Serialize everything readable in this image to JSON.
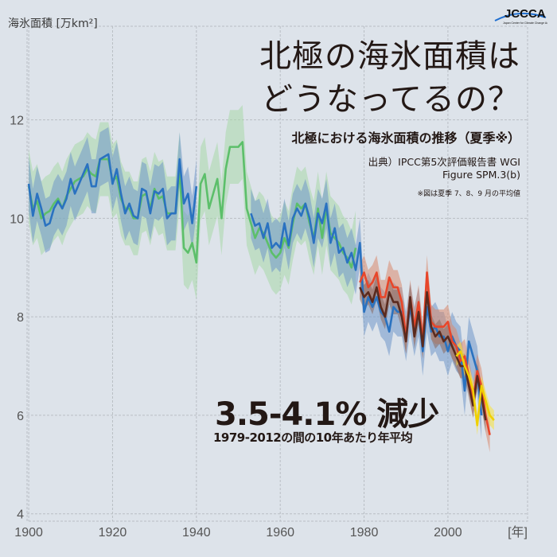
{
  "header": {
    "title_line1": "北極の海氷面積は",
    "title_line2": "どうなってるの？",
    "subtitle": "北極における海氷面積の推移（夏季※）",
    "source_line1": "出典）IPCC第5次評価報告書 WGI",
    "source_line2": "Figure SPM.3(b)",
    "note": "※図は夏季 7、8、9 月の平均値"
  },
  "logo": {
    "text": "JCCCA",
    "tagline": "Japan Center for Climate Change Actions"
  },
  "annotation": {
    "headline": "3.5-4.1% 減少",
    "detail": "1979-2012の間の10年あたり年平均"
  },
  "chart_data": {
    "type": "line",
    "ylabel": "海氷面積 [万km²]",
    "xlabel": "[年]",
    "xlim": [
      1899.6,
      2019
    ],
    "ylim": [
      3.85,
      13.9
    ],
    "xticks": [
      1900,
      1920,
      1940,
      1960,
      1980,
      2000
    ],
    "yticks": [
      4,
      6,
      8,
      10,
      12
    ],
    "grid": true,
    "series": [
      {
        "color": "#5cbf6a",
        "band_color": "#a8d9a8",
        "uncertainty": 0.75,
        "start": 1900,
        "values": [
          10.65,
          10.2,
          10.35,
          10.0,
          10.1,
          10.15,
          10.3,
          10.4,
          10.2,
          10.45,
          10.6,
          10.75,
          10.8,
          10.85,
          11.0,
          10.9,
          10.85,
          11.2,
          11.2,
          11.2,
          10.75,
          10.85,
          10.4,
          10.2,
          10.2,
          10.0,
          10.0,
          10.45,
          10.5,
          10.2,
          10.6,
          10.4,
          10.45,
          10.1,
          10.1,
          10.1,
          11.0,
          9.4,
          9.3,
          9.5,
          9.1,
          10.7,
          10.9,
          10.2,
          10.5,
          10.8,
          10.0,
          11.0,
          11.45,
          11.45,
          11.45,
          11.55,
          10.2,
          9.9,
          9.6,
          9.8,
          9.7,
          9.5,
          9.3,
          9.2,
          9.3,
          9.6,
          9.4,
          9.9,
          10.3,
          10.2,
          10.3,
          9.9,
          9.6,
          10.2,
          9.6,
          10.2,
          9.7,
          9.6,
          9.5,
          9.3,
          9.2,
          9.0,
          9.4
        ]
      },
      {
        "color": "#2a72c0",
        "band_color": "#6f97c8",
        "uncertainty": 0.55,
        "start": 1900,
        "values": [
          10.7,
          10.05,
          10.5,
          10.2,
          9.85,
          9.9,
          10.2,
          10.35,
          10.2,
          10.4,
          10.8,
          10.5,
          10.7,
          10.9,
          11.1,
          10.65,
          10.65,
          11.2,
          11.25,
          11.3,
          10.7,
          11.0,
          10.5,
          10.1,
          10.3,
          10.05,
          10.0,
          10.6,
          10.55,
          10.1,
          10.55,
          10.5,
          10.6,
          10.0,
          10.1,
          10.1,
          11.2,
          10.3,
          10.5,
          9.9,
          10.65
        ]
      },
      {
        "color": "#2a72c0",
        "band_color": "#6f97c8",
        "uncertainty": 0.5,
        "start": 1953,
        "values": [
          10.1,
          9.85,
          9.9,
          9.6,
          9.9,
          9.4,
          9.5,
          9.4,
          9.9,
          9.45,
          10.0,
          10.2,
          10.05,
          10.3,
          10.0,
          9.5,
          10.1,
          9.9,
          10.3,
          9.5,
          9.8,
          9.3,
          9.4,
          9.1,
          9.3,
          8.95,
          9.5,
          8.1,
          8.4,
          8.2,
          8.4,
          8.1,
          8.0,
          7.7,
          8.2,
          8.1,
          8.1,
          7.6,
          8.2,
          7.7,
          8.1,
          7.3,
          8.2,
          7.7,
          7.8,
          7.6,
          7.6,
          7.3,
          7.6,
          7.4,
          7.3,
          6.5,
          7.5,
          7.2,
          6.9,
          6.0
        ]
      },
      {
        "color": "#e8462a",
        "band_color": "#d98a6e",
        "uncertainty": 0.35,
        "start": 1979,
        "values": [
          8.7,
          8.9,
          8.6,
          8.7,
          8.9,
          8.4,
          8.4,
          8.8,
          8.6,
          8.6,
          8.3,
          7.6,
          8.4,
          7.8,
          8.3,
          7.5,
          8.9,
          7.9,
          7.8,
          7.8,
          7.8,
          7.9,
          7.5,
          7.4,
          7.1,
          7.2,
          6.8,
          6.3,
          6.9,
          6.6,
          6.0,
          5.6
        ]
      },
      {
        "color": "#5a2a1e",
        "band_color": "#8a6a60",
        "uncertainty": 0.25,
        "start": 1979,
        "values": [
          8.6,
          8.4,
          8.5,
          8.3,
          8.6,
          8.2,
          8.0,
          8.5,
          8.3,
          8.3,
          8.0,
          7.5,
          8.4,
          7.6,
          8.1,
          7.4,
          8.5,
          7.8,
          7.6,
          7.7,
          7.5,
          7.6,
          7.4,
          7.2,
          7.0,
          7.0,
          6.6,
          6.2,
          6.8,
          6.4,
          5.9
        ]
      },
      {
        "color": "#f0d000",
        "band_color": "#f7e43a",
        "uncertainty": 0.2,
        "start": 2002,
        "values": [
          7.2,
          7.3,
          7.0,
          6.8,
          6.5,
          5.8,
          6.6,
          6.3,
          6.0,
          5.9
        ]
      }
    ]
  }
}
